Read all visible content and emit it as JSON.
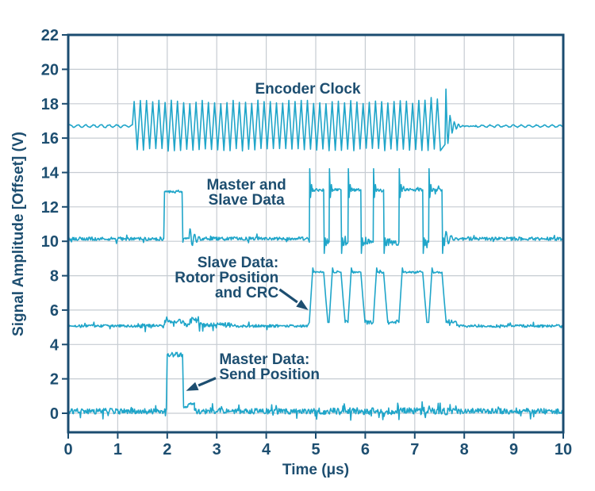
{
  "chart_data": {
    "type": "line",
    "title": "",
    "xlabel": "Time (μs)",
    "ylabel": "Signal Amplitude [Offset] (V)",
    "xlim": [
      0,
      10
    ],
    "ylim": [
      -1.1,
      22
    ],
    "x_ticks": [
      0,
      1,
      2,
      3,
      4,
      5,
      6,
      7,
      8,
      9,
      10
    ],
    "y_ticks": [
      0,
      2,
      4,
      6,
      8,
      10,
      12,
      14,
      16,
      18,
      20,
      22
    ],
    "grid": true,
    "legend": "none",
    "colors": {
      "trace": "#1fa5c9",
      "frame": "#1b4c70",
      "grid": "#c6ccd2",
      "text": "#1d4e70",
      "background": "#ffffff"
    },
    "series": [
      {
        "name": "Encoder Clock",
        "kind": "clock",
        "baseline": 16.7,
        "ripple": 0.07,
        "start": 1.3,
        "end": 7.63,
        "high": 18.1,
        "low": 15.33,
        "period": 0.125,
        "end_spike": 18.85
      },
      {
        "name": "Master and Slave Data",
        "kind": "bus",
        "baseline": 10.15,
        "noise": 0.1,
        "master_pulse": {
          "start": 1.93,
          "end": 2.3,
          "level": 12.88
        },
        "pulses": [
          [
            4.87,
            5.16
          ],
          [
            5.27,
            5.51
          ],
          [
            5.65,
            5.91
          ],
          [
            6.16,
            6.37
          ],
          [
            6.68,
            7.16
          ],
          [
            7.28,
            7.55
          ]
        ],
        "pulse_level": 13.0,
        "overshoot": 14.22,
        "undershoot": 9.3,
        "gap_level": 9.95
      },
      {
        "name": "Slave Data: Rotor Position and CRC",
        "kind": "slave",
        "baseline": 5.08,
        "noise": 0.09,
        "pulses": [
          [
            4.87,
            5.16
          ],
          [
            5.27,
            5.51
          ],
          [
            5.65,
            5.91
          ],
          [
            6.16,
            6.37
          ],
          [
            6.68,
            7.16
          ],
          [
            7.28,
            7.55
          ]
        ],
        "pulse_level": 8.2
      },
      {
        "name": "Master Data: Send Position",
        "kind": "master",
        "baseline": 0.12,
        "noise": 0.16,
        "pulses": [
          [
            1.98,
            2.31
          ]
        ],
        "pulse_level": 3.42
      }
    ],
    "annotations": [
      {
        "id": "encoder-clock",
        "lines": [
          "Encoder Clock"
        ],
        "align": "center",
        "anchor_t": 4.84,
        "anchor_v": 19.3
      },
      {
        "id": "master-slave-data",
        "lines": [
          "Master and",
          "Slave Data"
        ],
        "align": "center",
        "anchor_t": 3.6,
        "anchor_v": 13.72
      },
      {
        "id": "slave-data",
        "lines": [
          "Slave Data:",
          "Rotor Position",
          "and CRC"
        ],
        "align": "right",
        "anchor_t": 4.25,
        "anchor_v": 9.2,
        "arrow": {
          "t1": 4.27,
          "v1": 7.2,
          "t2": 4.85,
          "v2": 6.0
        }
      },
      {
        "id": "master-data",
        "lines": [
          "Master Data:",
          "Send Position"
        ],
        "align": "left",
        "anchor_t": 3.05,
        "anchor_v": 3.55,
        "arrow": {
          "t1": 2.98,
          "v1": 2.05,
          "t2": 2.38,
          "v2": 1.3
        }
      }
    ]
  }
}
